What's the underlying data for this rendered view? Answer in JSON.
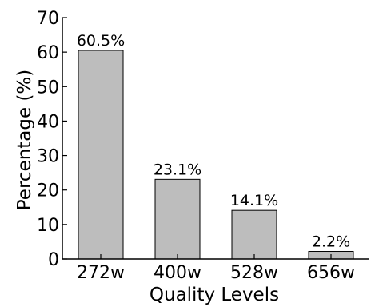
{
  "chart_data": {
    "type": "bar",
    "categories": [
      "272w",
      "400w",
      "528w",
      "656w"
    ],
    "values": [
      60.5,
      23.1,
      14.1,
      2.2
    ],
    "data_labels": [
      "60.5%",
      "23.1%",
      "14.1%",
      "2.2%"
    ],
    "xlabel": "Quality Levels",
    "ylabel": "Percentage (%)",
    "ylim": [
      0,
      70
    ],
    "yticks": [
      0,
      10,
      20,
      30,
      40,
      50,
      60,
      70
    ],
    "bar_color": "#bdbdbd",
    "grid": false,
    "legend": "none"
  }
}
